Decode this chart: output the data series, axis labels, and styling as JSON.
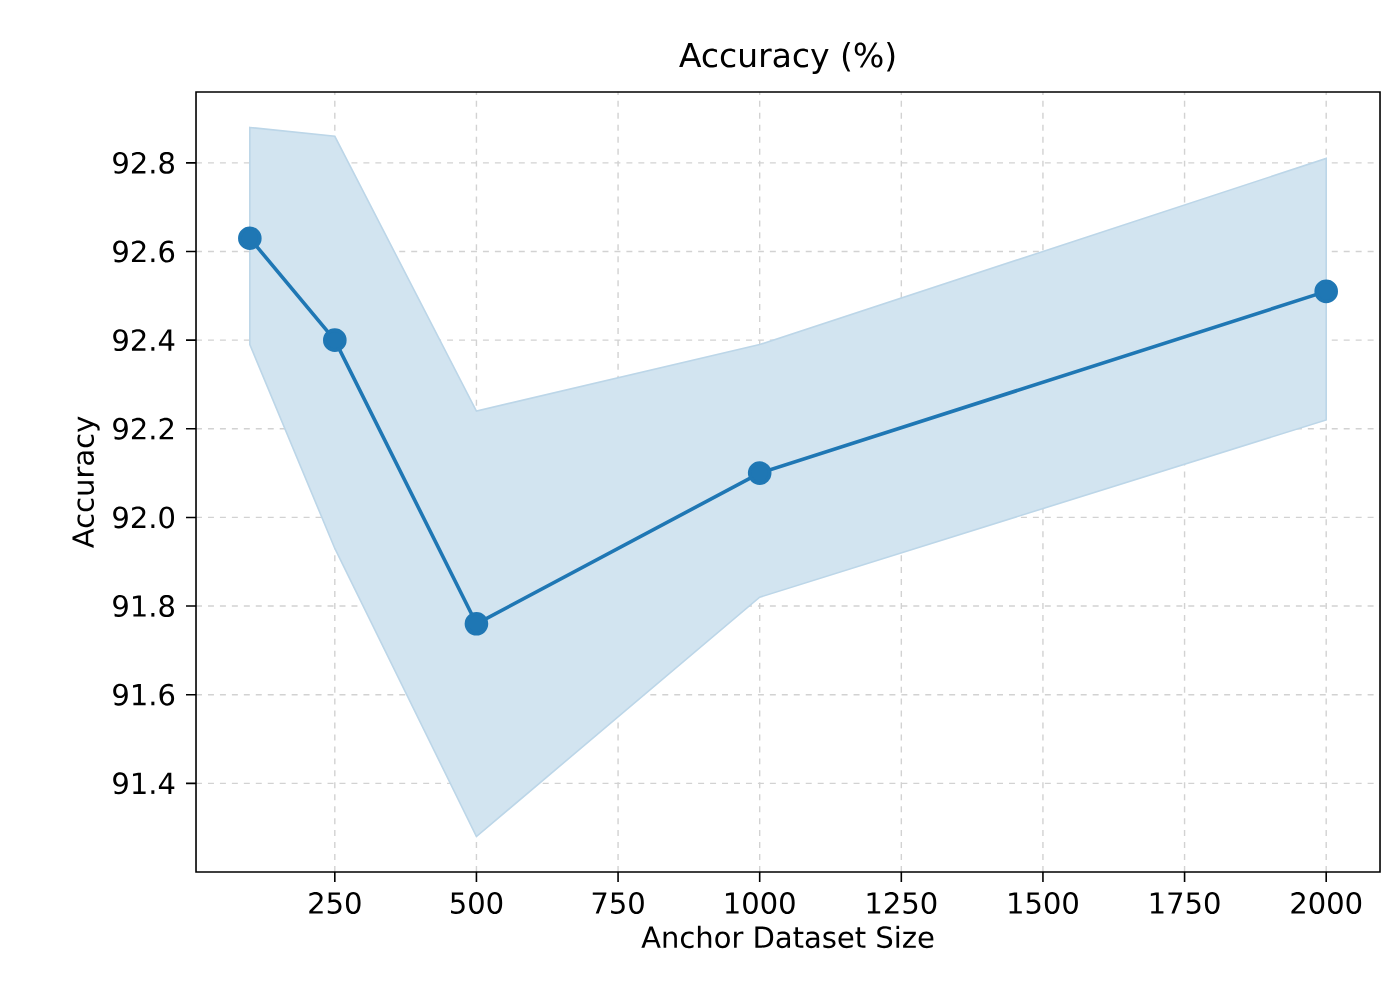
{
  "chart_data": {
    "type": "line",
    "title": "Accuracy (%)",
    "xlabel": "Anchor Dataset Size",
    "ylabel": "Accuracy",
    "x": [
      100,
      250,
      500,
      1000,
      2000
    ],
    "series": [
      {
        "color": "#1f77b4",
        "values": [
          92.63,
          92.4,
          91.76,
          92.1,
          92.51
        ],
        "lower": [
          92.39,
          91.93,
          91.28,
          91.82,
          92.22
        ],
        "upper": [
          92.88,
          92.86,
          92.24,
          92.39,
          92.81
        ]
      }
    ],
    "xlim": [
      5,
      2095
    ],
    "ylim": [
      91.2,
      92.96
    ],
    "xticks": [
      250,
      500,
      750,
      1000,
      1250,
      1500,
      1750,
      2000
    ],
    "yticks": [
      91.4,
      91.6,
      91.8,
      {
        "value": 92,
        "label": "92.0"
      },
      92.2,
      92.4,
      92.6,
      92.8
    ],
    "grid": true,
    "marker": "circle",
    "line_style": "solid"
  }
}
